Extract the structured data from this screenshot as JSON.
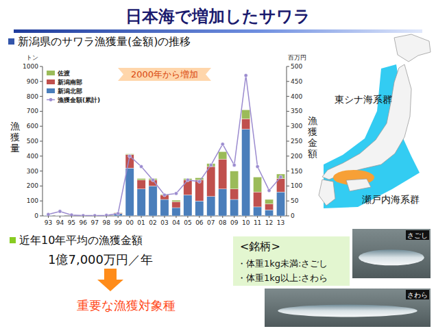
{
  "chart_data": {
    "type": "bar",
    "title": "新潟県のサワラ漁獲量(金額)の推移",
    "stacked": true,
    "grid": false,
    "legend": "top-left",
    "ylabel": "漁獲量",
    "yunit": "トン",
    "y2label": "漁獲金額",
    "y2unit": "百万円",
    "annotations": [
      {
        "text": "2000年から増加"
      }
    ],
    "categories": [
      "93",
      "94",
      "95",
      "96",
      "97",
      "98",
      "99",
      "00",
      "01",
      "02",
      "03",
      "04",
      "05",
      "06",
      "07",
      "08",
      "09",
      "10",
      "11",
      "12",
      "13"
    ],
    "series": [
      {
        "name": "新潟北部",
        "color": "#4a7ebb",
        "type": "bar",
        "values": [
          3,
          1,
          0,
          0,
          0,
          0,
          15,
          320,
          180,
          200,
          110,
          55,
          140,
          100,
          130,
          180,
          110,
          580,
          60,
          40,
          160
        ]
      },
      {
        "name": "新潟南部",
        "color": "#c0504d",
        "type": "bar",
        "values": [
          0,
          0,
          0,
          0,
          0,
          0,
          5,
          90,
          60,
          40,
          30,
          40,
          100,
          140,
          200,
          200,
          70,
          70,
          100,
          40,
          90
        ]
      },
      {
        "name": "佐渡",
        "color": "#9bbb59",
        "type": "bar",
        "values": [
          0,
          0,
          0,
          0,
          0,
          0,
          2,
          5,
          10,
          10,
          5,
          10,
          10,
          15,
          20,
          50,
          120,
          60,
          100,
          30,
          30
        ]
      },
      {
        "name": "漁獲金額(累計)",
        "color": "#9b8bcf",
        "type": "line",
        "marker": "circle",
        "axis": "y2",
        "values": [
          5,
          15,
          3,
          1,
          1,
          2,
          8,
          200,
          165,
          120,
          70,
          75,
          120,
          115,
          170,
          240,
          170,
          470,
          165,
          85,
          130
        ]
      }
    ],
    "ylim": [
      0,
      1000
    ],
    "yticks": [
      0,
      100,
      200,
      300,
      400,
      500,
      600,
      700,
      800,
      900,
      1000
    ],
    "y2lim": [
      0,
      500
    ],
    "y2ticks": [
      0,
      50,
      100,
      150,
      200,
      250,
      300,
      350,
      400,
      450,
      500
    ]
  },
  "slide": {
    "title": "日本海で増加したサワラ",
    "map": {
      "labels": [
        "東シナ海系群",
        "瀬戸内海系群"
      ]
    },
    "summary": {
      "heading": "近年10年平均の漁獲金額",
      "value": "1億7,000万円／年",
      "conclusion": "重要な漁獲対象種"
    },
    "brands": {
      "heading": "<銘柄>",
      "items": [
        "・体重1kg未満:さごし",
        "・体重1kg以上:さわら"
      ],
      "photos": [
        "さごし",
        "さわら"
      ]
    }
  }
}
